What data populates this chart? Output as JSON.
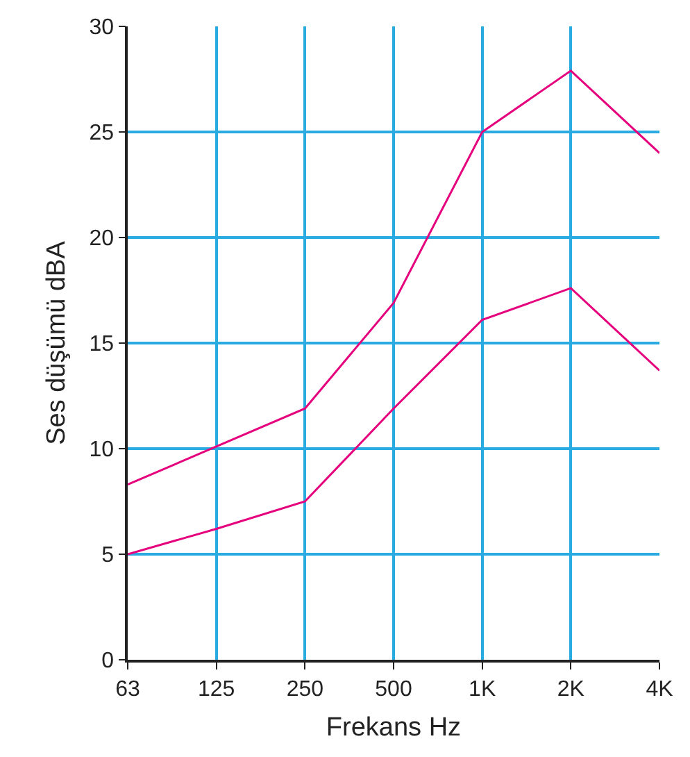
{
  "chart_data": {
    "type": "line",
    "xlabel": "Frekans Hz",
    "ylabel": "Ses düşümü dBA",
    "categories": [
      "63",
      "125",
      "250",
      "500",
      "1K",
      "2K",
      "4K"
    ],
    "series": [
      {
        "color": "#e5007d",
        "values": [
          8.3,
          10.1,
          11.9,
          16.9,
          25,
          27.9,
          24
        ]
      },
      {
        "color": "#e5007d",
        "values": [
          5,
          6.2,
          7.5,
          11.9,
          16.1,
          17.6,
          13.7
        ]
      }
    ],
    "ylim": [
      0,
      30
    ],
    "yticks": [
      0,
      5,
      10,
      15,
      20,
      25,
      30
    ],
    "grid": true,
    "marker": "none",
    "line_style": "solid"
  }
}
